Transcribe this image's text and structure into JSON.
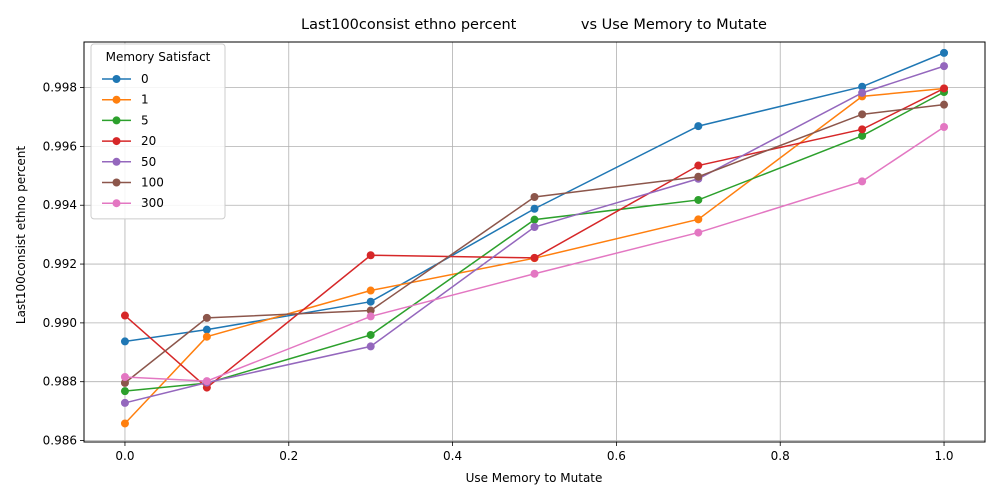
{
  "chart_data": {
    "type": "line",
    "title": "Last100consist ethno percent              vs Use Memory to Mutate",
    "xlabel": "Use Memory to Mutate",
    "ylabel": "Last100consist ethno percent",
    "xlim": [
      -0.05,
      1.05
    ],
    "ylim": [
      0.98595,
      0.99955
    ],
    "xticks": [
      0.0,
      0.2,
      0.4,
      0.6,
      0.8,
      1.0
    ],
    "xtick_labels": [
      "0.0",
      "0.2",
      "0.4",
      "0.6",
      "0.8",
      "1.0"
    ],
    "yticks": [
      0.986,
      0.988,
      0.99,
      0.992,
      0.994,
      0.996,
      0.998
    ],
    "ytick_labels": [
      "0.986",
      "0.988",
      "0.990",
      "0.992",
      "0.994",
      "0.996",
      "0.998"
    ],
    "grid": true,
    "legend": {
      "title": "Memory Satisfact",
      "placement": "top-left"
    },
    "series": [
      {
        "name": "0",
        "color": "#1f77b4",
        "x": [
          0.0,
          0.1,
          0.3,
          0.5,
          0.7,
          0.9,
          1.0
        ],
        "y": [
          0.98937,
          0.98977,
          0.99072,
          0.99388,
          0.99669,
          0.99803,
          0.99918
        ]
      },
      {
        "name": "1",
        "color": "#ff7f0e",
        "x": [
          0.0,
          0.1,
          0.3,
          0.5,
          0.7,
          0.9,
          1.0
        ],
        "y": [
          0.98658,
          0.98953,
          0.9911,
          0.9922,
          0.99352,
          0.9977,
          0.99797
        ]
      },
      {
        "name": "5",
        "color": "#2ca02c",
        "x": [
          0.0,
          0.1,
          0.3,
          0.5,
          0.7,
          0.9,
          1.0
        ],
        "y": [
          0.98768,
          0.98795,
          0.98959,
          0.99351,
          0.99418,
          0.99636,
          0.99785
        ]
      },
      {
        "name": "20",
        "color": "#d62728",
        "x": [
          0.0,
          0.1,
          0.3,
          0.5,
          0.7,
          0.9,
          1.0
        ],
        "y": [
          0.99025,
          0.9878,
          0.9923,
          0.99221,
          0.99535,
          0.99658,
          0.99797
        ]
      },
      {
        "name": "50",
        "color": "#9467bd",
        "x": [
          0.0,
          0.1,
          0.3,
          0.5,
          0.7,
          0.9,
          1.0
        ],
        "y": [
          0.98728,
          0.98797,
          0.9892,
          0.99326,
          0.9949,
          0.99782,
          0.99873
        ]
      },
      {
        "name": "100",
        "color": "#8c564b",
        "x": [
          0.0,
          0.1,
          0.3,
          0.5,
          0.7,
          0.9,
          1.0
        ],
        "y": [
          0.98796,
          0.99017,
          0.99042,
          0.99428,
          0.99497,
          0.99709,
          0.99742
        ]
      },
      {
        "name": "300",
        "color": "#e377c2",
        "x": [
          0.0,
          0.1,
          0.3,
          0.5,
          0.7,
          0.9,
          1.0
        ],
        "y": [
          0.98816,
          0.98802,
          0.99022,
          0.99167,
          0.99307,
          0.99481,
          0.99666
        ]
      }
    ]
  }
}
